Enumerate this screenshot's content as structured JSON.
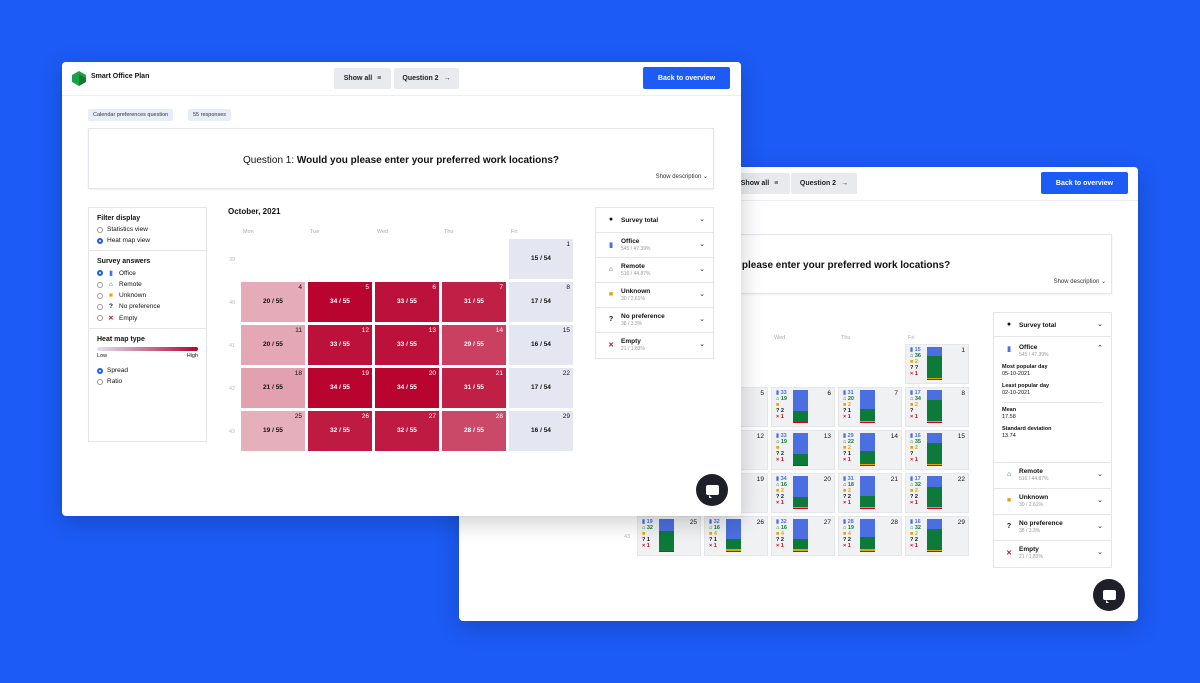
{
  "colors": {
    "background": "#1c5bf5",
    "accent": "#1c5bf5",
    "heat_low": "#e8eaf4",
    "heat_high": "#b8002c",
    "office": "#4b6fe0",
    "remote": "#0d7a3a",
    "unknown": "#e8a300",
    "empty": "#d0021b"
  },
  "back_window": {
    "header": {
      "show_all": "Show all",
      "question2": "Question 2",
      "back_to_overview": "Back to overview"
    },
    "question_partial": "u please enter your preferred work locations?",
    "show_description": "Show description",
    "weekdays": [
      "Wed",
      "Thu",
      "Fri"
    ],
    "weeks": [
      "43"
    ],
    "cells": [
      {
        "day": "1",
        "office": "15",
        "remote": "36",
        "unknown": "2",
        "nopref": "?",
        "empty": "1"
      },
      {
        "day": "5",
        "office": "",
        "remote": "",
        "unknown": "",
        "nopref": "",
        "empty": ""
      },
      {
        "day": "6",
        "office": "33",
        "remote": "19",
        "unknown": "",
        "nopref": "2",
        "empty": "1"
      },
      {
        "day": "7",
        "office": "31",
        "remote": "20",
        "unknown": "2",
        "nopref": "1",
        "empty": "1"
      },
      {
        "day": "8",
        "office": "17",
        "remote": "34",
        "unknown": "2",
        "nopref": "",
        "empty": "1"
      },
      {
        "day": "12",
        "office": "",
        "remote": "",
        "unknown": "",
        "nopref": "",
        "empty": ""
      },
      {
        "day": "13",
        "office": "33",
        "remote": "19",
        "unknown": "",
        "nopref": "2",
        "empty": "1"
      },
      {
        "day": "14",
        "office": "29",
        "remote": "22",
        "unknown": "2",
        "nopref": "1",
        "empty": "1"
      },
      {
        "day": "15",
        "office": "16",
        "remote": "35",
        "unknown": "2",
        "nopref": "",
        "empty": "1"
      },
      {
        "day": "19",
        "office": "",
        "remote": "",
        "unknown": "",
        "nopref": "",
        "empty": ""
      },
      {
        "day": "20",
        "office": "34",
        "remote": "16",
        "unknown": "2",
        "nopref": "2",
        "empty": "1"
      },
      {
        "day": "21",
        "office": "31",
        "remote": "18",
        "unknown": "2",
        "nopref": "2",
        "empty": "1"
      },
      {
        "day": "22",
        "office": "17",
        "remote": "32",
        "unknown": "2",
        "nopref": "2",
        "empty": "1"
      },
      {
        "day": "25",
        "office": "19",
        "remote": "32",
        "unknown": "",
        "nopref": "1",
        "empty": "1"
      },
      {
        "day": "26",
        "office": "32",
        "remote": "16",
        "unknown": "4",
        "nopref": "1",
        "empty": "1"
      },
      {
        "day": "27",
        "office": "32",
        "remote": "16",
        "unknown": "4",
        "nopref": "2",
        "empty": "1"
      },
      {
        "day": "28",
        "office": "28",
        "remote": "19",
        "unknown": "4",
        "nopref": "2",
        "empty": "1"
      },
      {
        "day": "29",
        "office": "16",
        "remote": "32",
        "unknown": "2",
        "nopref": "2",
        "empty": "1"
      }
    ],
    "survey_panel": {
      "total": "Survey total",
      "office": {
        "name": "Office",
        "sub": "545 / 47.39%"
      },
      "stats": [
        {
          "label": "Most popular day",
          "value": "05-10-2021"
        },
        {
          "label": "Least popular day",
          "value": "02-10-2021"
        },
        {
          "label": "Mean",
          "value": "17.58"
        },
        {
          "label": "Standard deviation",
          "value": "13.74"
        }
      ],
      "rows": [
        {
          "name": "Remote",
          "sub": "516 / 44.87%"
        },
        {
          "name": "Unknown",
          "sub": "30 / 2.61%"
        },
        {
          "name": "No preference",
          "sub": "38 / 3.3%"
        },
        {
          "name": "Empty",
          "sub": "21 / 1.83%"
        }
      ]
    }
  },
  "front_window": {
    "app_title": "Smart Office Plan",
    "header": {
      "show_all": "Show all",
      "question2": "Question 2",
      "back_to_overview": "Back to overview"
    },
    "tags": [
      "Calendar preferences question",
      "55 responses"
    ],
    "question_prefix": "Question 1: ",
    "question_text": "Would you please enter your preferred work locations?",
    "show_description": "Show description",
    "filter": {
      "title": "Filter display",
      "views": [
        "Statistics view",
        "Heat map view"
      ],
      "selected_view": "Heat map view",
      "answers_title": "Survey answers",
      "answers": [
        {
          "label": "Office",
          "icon": "building-icon"
        },
        {
          "label": "Remote",
          "icon": "house-icon"
        },
        {
          "label": "Unknown",
          "icon": "lock-icon"
        },
        {
          "label": "No preference",
          "icon": "question-icon"
        },
        {
          "label": "Empty",
          "icon": "x-icon"
        }
      ],
      "selected_answer": "Office",
      "heat_title": "Heat map type",
      "low": "Low",
      "high": "High",
      "types": [
        "Spread",
        "Ratio"
      ],
      "selected_type": "Spread"
    },
    "calendar": {
      "month": "October, 2021",
      "weekdays": [
        "Mon",
        "Tue",
        "Wed",
        "Thu",
        "Fri"
      ],
      "weeks": [
        "39",
        "40",
        "41",
        "42",
        "43"
      ],
      "cells": [
        {
          "day": "1",
          "value": "15 / 54",
          "intensity": 0.1
        },
        {
          "day": "4",
          "value": "20 / 55",
          "intensity": 0.2
        },
        {
          "day": "5",
          "value": "34 / 55",
          "intensity": 0.98
        },
        {
          "day": "6",
          "value": "33 / 55",
          "intensity": 0.92
        },
        {
          "day": "7",
          "value": "31 / 55",
          "intensity": 0.85
        },
        {
          "day": "8",
          "value": "17 / 54",
          "intensity": 0.08
        },
        {
          "day": "11",
          "value": "20 / 55",
          "intensity": 0.22
        },
        {
          "day": "12",
          "value": "33 / 55",
          "intensity": 0.92
        },
        {
          "day": "13",
          "value": "33 / 55",
          "intensity": 0.92
        },
        {
          "day": "14",
          "value": "29 / 55",
          "intensity": 0.7
        },
        {
          "day": "15",
          "value": "16 / 54",
          "intensity": 0.1
        },
        {
          "day": "18",
          "value": "21 / 55",
          "intensity": 0.25
        },
        {
          "day": "19",
          "value": "34 / 55",
          "intensity": 0.98
        },
        {
          "day": "20",
          "value": "34 / 55",
          "intensity": 0.98
        },
        {
          "day": "21",
          "value": "31 / 55",
          "intensity": 0.85
        },
        {
          "day": "22",
          "value": "17 / 54",
          "intensity": 0.08
        },
        {
          "day": "25",
          "value": "19 / 55",
          "intensity": 0.18
        },
        {
          "day": "26",
          "value": "32 / 55",
          "intensity": 0.88
        },
        {
          "day": "27",
          "value": "32 / 55",
          "intensity": 0.88
        },
        {
          "day": "28",
          "value": "28 / 55",
          "intensity": 0.66
        },
        {
          "day": "29",
          "value": "16 / 54",
          "intensity": 0.1
        }
      ]
    },
    "survey_panel": {
      "total": "Survey total",
      "rows": [
        {
          "name": "Office",
          "sub": "545 / 47.39%"
        },
        {
          "name": "Remote",
          "sub": "516 / 44.87%"
        },
        {
          "name": "Unknown",
          "sub": "30 / 2.61%"
        },
        {
          "name": "No preference",
          "sub": "38 / 3.3%"
        },
        {
          "name": "Empty",
          "sub": "21 / 1.83%"
        }
      ]
    }
  }
}
